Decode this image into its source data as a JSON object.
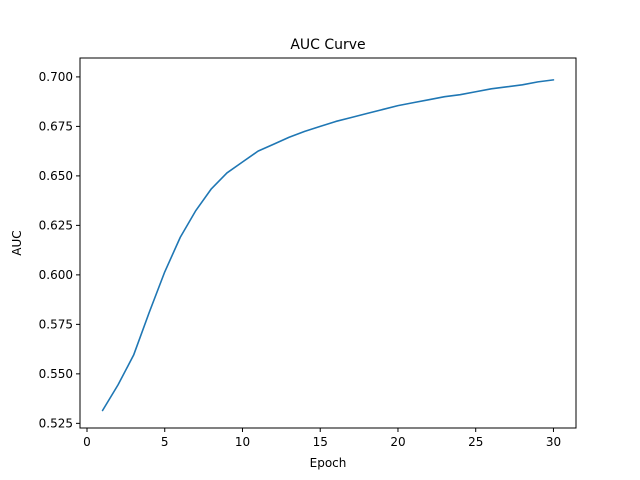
{
  "chart_data": {
    "type": "line",
    "title": "AUC Curve",
    "xlabel": "Epoch",
    "ylabel": "AUC",
    "xlim": [
      -0.45,
      31.45
    ],
    "ylim": [
      0.52265,
      0.70955
    ],
    "xticks": [
      0,
      5,
      10,
      15,
      20,
      25,
      30
    ],
    "xtick_labels": [
      "0",
      "5",
      "10",
      "15",
      "20",
      "25",
      "30"
    ],
    "yticks": [
      0.525,
      0.55,
      0.575,
      0.6,
      0.625,
      0.65,
      0.675,
      0.7
    ],
    "ytick_labels": [
      "0.525",
      "0.550",
      "0.575",
      "0.600",
      "0.625",
      "0.650",
      "0.675",
      "0.700"
    ],
    "grid": false,
    "series": [
      {
        "color": "#1f77b4",
        "x": [
          1,
          2,
          3,
          4,
          5,
          6,
          7,
          8,
          9,
          10,
          11,
          12,
          13,
          14,
          15,
          16,
          17,
          18,
          19,
          20,
          21,
          22,
          23,
          24,
          25,
          26,
          27,
          28,
          29,
          30
        ],
        "values": [
          0.5315,
          0.5445,
          0.5595,
          0.581,
          0.6015,
          0.619,
          0.6325,
          0.6435,
          0.6515,
          0.657,
          0.6625,
          0.666,
          0.6695,
          0.6725,
          0.675,
          0.6775,
          0.6795,
          0.6815,
          0.6835,
          0.6855,
          0.687,
          0.6885,
          0.69,
          0.691,
          0.6925,
          0.694,
          0.695,
          0.696,
          0.6975,
          0.6985
        ]
      }
    ]
  }
}
